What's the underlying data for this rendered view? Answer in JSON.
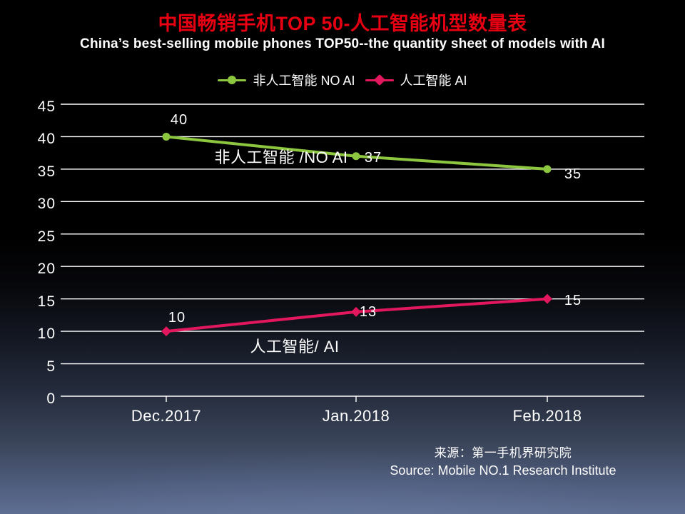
{
  "header": {
    "title": "中国畅销手机TOP 50-人工智能机型数量表",
    "title_color": "#e60012",
    "subtitle": "China’s best-selling mobile phones TOP50--the quantity sheet of models with AI"
  },
  "legend": {
    "position": "top",
    "items": [
      {
        "label": "非人工智能 NO AI",
        "color": "#8dc63f",
        "marker": "line-circle-marker"
      },
      {
        "label": "人工智能 AI",
        "color": "#e3175e",
        "marker": "line-diamond-marker"
      }
    ]
  },
  "chart_data": {
    "type": "line",
    "title": "中国畅销手机TOP 50-人工智能机型数量表",
    "subtitle": "China’s best-selling mobile phones TOP50--the quantity sheet of models with AI",
    "categories": [
      "Dec.2017",
      "Jan.2018",
      "Feb.2018"
    ],
    "series": [
      {
        "name": "非人工智能 NO AI",
        "inline_label": "非人工智能 /NO AI",
        "color": "#8dc63f",
        "marker": "circle",
        "values": [
          40,
          37,
          35
        ]
      },
      {
        "name": "人工智能 AI",
        "inline_label": "人工智能/ AI",
        "color": "#e3175e",
        "marker": "diamond",
        "values": [
          10,
          13,
          15
        ]
      }
    ],
    "ylim": [
      0,
      45
    ],
    "y_ticks": [
      0,
      5,
      10,
      15,
      20,
      25,
      30,
      35,
      40,
      45
    ],
    "grid": "horizontal-white",
    "gridline_color": "#ffffff",
    "legend_position": "top",
    "data_labels": true
  },
  "source": {
    "cn": "来源：第一手机界研究院",
    "en": "Source: Mobile NO.1 Research Institute"
  }
}
